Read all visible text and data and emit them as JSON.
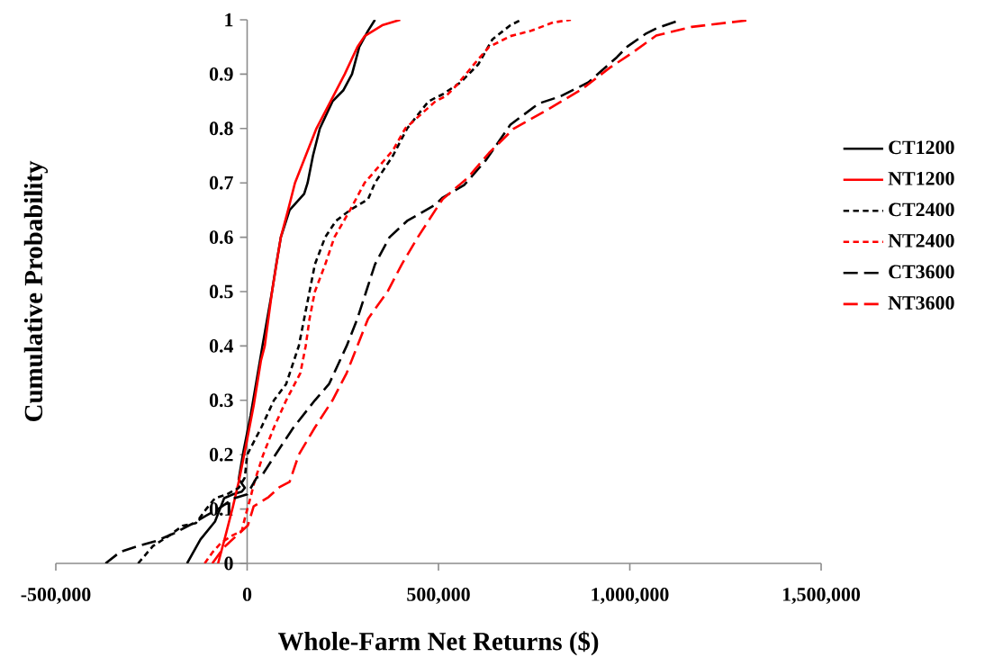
{
  "chart_data": {
    "type": "line",
    "xlabel": "Whole-Farm Net Returns ($)",
    "ylabel": "Cumulative Probability",
    "xlim": [
      -500000,
      1500000
    ],
    "ylim": [
      0,
      1
    ],
    "xticks": [
      {
        "value": -500000,
        "label": "-500,000"
      },
      {
        "value": 0,
        "label": "0"
      },
      {
        "value": 500000,
        "label": "500,000"
      },
      {
        "value": 1000000,
        "label": "1,000,000"
      },
      {
        "value": 1500000,
        "label": "1,500,000"
      }
    ],
    "yticks": [
      0,
      0.1,
      0.2,
      0.3,
      0.4,
      0.5,
      0.6,
      0.7,
      0.8,
      0.9,
      1
    ],
    "grid": false,
    "legend": "right",
    "marker": "none",
    "series": [
      {
        "name": "CT1200",
        "color": "#000000",
        "line_style": "solid",
        "x": [
          -157000,
          -122000,
          -84000,
          -60000,
          -37000,
          -14000,
          -6000,
          -22000,
          -10000,
          9000,
          40000,
          65000,
          76000,
          88000,
          111000,
          149000,
          158000,
          172000,
          190000,
          223000,
          251000,
          274000,
          293000,
          316000,
          334000
        ],
        "values": [
          0,
          0.044,
          0.077,
          0.12,
          0.127,
          0.132,
          0.139,
          0.155,
          0.205,
          0.272,
          0.4,
          0.5,
          0.55,
          0.6,
          0.65,
          0.68,
          0.7,
          0.75,
          0.8,
          0.85,
          0.87,
          0.9,
          0.95,
          0.98,
          1
        ]
      },
      {
        "name": "NT1200",
        "color": "#ff0000",
        "line_style": "solid",
        "x": [
          -76000,
          -57000,
          -37000,
          -22000,
          -6000,
          17000,
          36000,
          46000,
          65000,
          88000,
          107000,
          125000,
          153000,
          181000,
          218000,
          255000,
          288000,
          307000,
          353000,
          400000
        ],
        "values": [
          0,
          0.05,
          0.105,
          0.15,
          0.206,
          0.29,
          0.373,
          0.4,
          0.5,
          0.6,
          0.65,
          0.7,
          0.75,
          0.8,
          0.85,
          0.9,
          0.95,
          0.97,
          0.99,
          1
        ]
      },
      {
        "name": "CT2400",
        "color": "#000000",
        "line_style": "dotted",
        "x": [
          -285000,
          -246000,
          -208000,
          -169000,
          -134000,
          -107000,
          -84000,
          -53000,
          -22000,
          -6000,
          0,
          37000,
          70000,
          102000,
          135000,
          149000,
          163000,
          177000,
          204000,
          232000,
          269000,
          316000,
          334000,
          381000,
          418000,
          474000,
          511000,
          558000,
          604000,
          641000,
          688000,
          716000
        ],
        "values": [
          0,
          0.032,
          0.049,
          0.069,
          0.074,
          0.1,
          0.12,
          0.127,
          0.139,
          0.158,
          0.2,
          0.25,
          0.3,
          0.33,
          0.4,
          0.45,
          0.5,
          0.55,
          0.6,
          0.63,
          0.65,
          0.67,
          0.7,
          0.75,
          0.8,
          0.85,
          0.863,
          0.885,
          0.918,
          0.964,
          0.99,
          1
        ]
      },
      {
        "name": "NT2400",
        "color": "#ff0000",
        "line_style": "dotted",
        "x": [
          -111000,
          -91000,
          -68000,
          -37000,
          -14000,
          -6000,
          9000,
          19000,
          42000,
          70000,
          102000,
          139000,
          153000,
          163000,
          177000,
          204000,
          228000,
          269000,
          307000,
          344000,
          381000,
          413000,
          492000,
          520000,
          548000,
          595000,
          632000,
          688000,
          743000,
          799000,
          846000
        ],
        "values": [
          0,
          0.02,
          0.038,
          0.052,
          0.06,
          0.083,
          0.122,
          0.15,
          0.2,
          0.25,
          0.3,
          0.35,
          0.4,
          0.45,
          0.5,
          0.55,
          0.6,
          0.65,
          0.7,
          0.73,
          0.76,
          0.8,
          0.85,
          0.86,
          0.88,
          0.92,
          0.95,
          0.97,
          0.98,
          0.995,
          1
        ]
      },
      {
        "name": "CT3600",
        "color": "#000000",
        "line_style": "dashed",
        "x": [
          -370000,
          -332000,
          -285000,
          -239000,
          -192000,
          -146000,
          -107000,
          -76000,
          -37000,
          0,
          25000,
          37000,
          74000,
          121000,
          177000,
          214000,
          260000,
          288000,
          311000,
          334000,
          372000,
          418000,
          492000,
          511000,
          567000,
          623000,
          688000,
          762000,
          818000,
          892000,
          966000,
          994000,
          1041000,
          1069000,
          1134000
        ],
        "values": [
          0,
          0.021,
          0.032,
          0.041,
          0.055,
          0.072,
          0.088,
          0.1,
          0.119,
          0.127,
          0.158,
          0.16,
          0.2,
          0.25,
          0.3,
          0.33,
          0.4,
          0.45,
          0.5,
          0.55,
          0.6,
          0.63,
          0.66,
          0.673,
          0.696,
          0.741,
          0.807,
          0.846,
          0.859,
          0.885,
          0.931,
          0.951,
          0.974,
          0.984,
          1
        ]
      },
      {
        "name": "NT3600",
        "color": "#ff0000",
        "line_style": "dashed",
        "x": [
          -91000,
          -60000,
          -29000,
          2000,
          17000,
          56000,
          84000,
          111000,
          135000,
          177000,
          223000,
          260000,
          288000,
          316000,
          367000,
          404000,
          446000,
          492000,
          511000,
          576000,
          632000,
          697000,
          781000,
          874000,
          948000,
          1004000,
          1069000,
          1162000,
          1319000
        ],
        "values": [
          0,
          0.03,
          0.05,
          0.07,
          0.105,
          0.122,
          0.14,
          0.15,
          0.2,
          0.25,
          0.3,
          0.35,
          0.4,
          0.45,
          0.5,
          0.55,
          0.6,
          0.65,
          0.67,
          0.709,
          0.755,
          0.8,
          0.833,
          0.872,
          0.912,
          0.938,
          0.971,
          0.987,
          1
        ]
      }
    ]
  }
}
